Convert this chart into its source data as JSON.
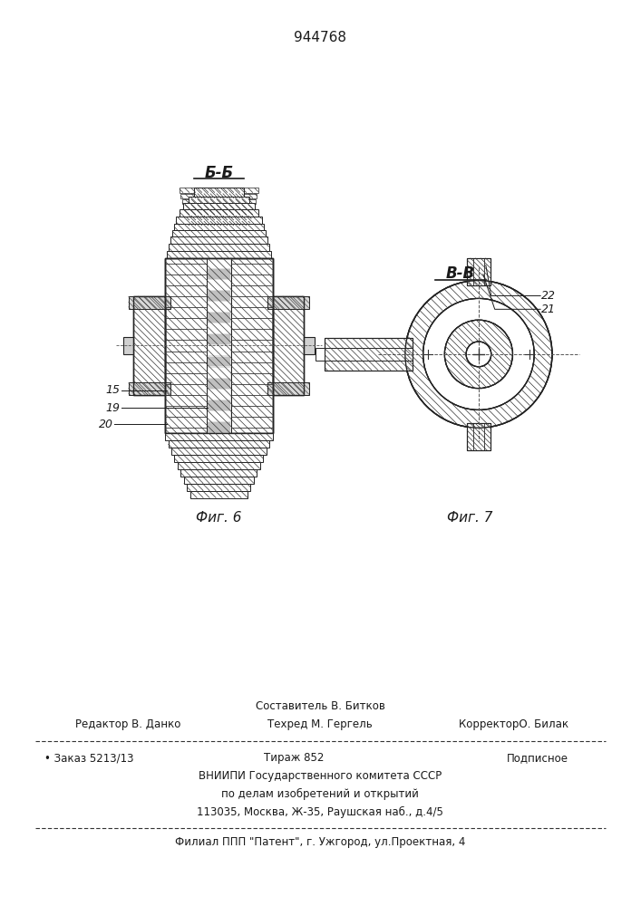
{
  "patent_number": "944768",
  "background_color": "#ffffff",
  "fig_width": 7.07,
  "fig_height": 10.0,
  "dpi": 100,
  "header_text": "944768",
  "section_label_bb": "Б-Б",
  "section_label_vv": "В-В",
  "fig6_label": "Фиг. 6",
  "fig7_label": "Фиг. 7",
  "footer_line1_center": "Составитель В. Битков",
  "footer_line2_left": "Редактор В. Данко",
  "footer_line2_center": "Техред М. Гергель",
  "footer_line2_right": "КорректорО. Билак",
  "footer_line3_left": "• Заказ 5213/13",
  "footer_line3_center": "Тираж 852",
  "footer_line3_right": "Подписное",
  "footer_line4": "ВНИИПИ Государственного комитета СССР",
  "footer_line5": "по делам изобретений и открытий",
  "footer_line6": "113035, Москва, Ж-35, Раушская наб., д.4/5",
  "footer_line7": "Филиал ППП \"Патент\", г. Ужгород, ул.Проектная, 4",
  "text_color": "#1a1a1a",
  "label_15": "15",
  "label_19": "19",
  "label_20": "20",
  "label_21": "21",
  "label_22": "22"
}
